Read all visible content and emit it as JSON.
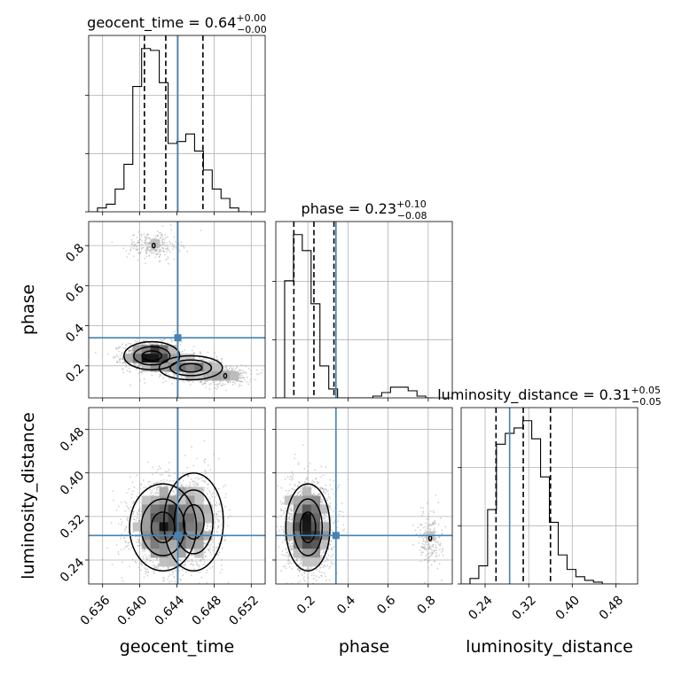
{
  "figure": {
    "truth_color": "#4682b4",
    "hist_color": "#000000",
    "point_color": "#9a9a9a",
    "contour_color": "#000000"
  },
  "chart_data": {
    "type": "corner",
    "grid": true,
    "parameters": [
      {
        "name": "geocent_time",
        "range": [
          0.6345,
          0.6535
        ],
        "ticks": [
          0.636,
          0.64,
          0.644,
          0.648,
          0.652
        ],
        "tick_labels": [
          "0.636",
          "0.640",
          "0.644",
          "0.648",
          "0.652"
        ],
        "truth": 0.6441,
        "quantiles": [
          0.6405,
          0.6428,
          0.6468
        ],
        "title": {
          "main": "geocent_time = 0.64",
          "sup": "+0.00",
          "sub": "−0.00"
        }
      },
      {
        "name": "phase",
        "range": [
          0.04,
          0.92
        ],
        "ticks": [
          0.2,
          0.4,
          0.6,
          0.8
        ],
        "tick_labels": [
          "0.2",
          "0.4",
          "0.6",
          "0.8"
        ],
        "truth": 0.34,
        "quantiles": [
          0.13,
          0.23,
          0.33
        ],
        "title": {
          "main": "phase = 0.23",
          "sup": "+0.10",
          "sub": "−0.08"
        }
      },
      {
        "name": "luminosity_distance",
        "range": [
          0.196,
          0.52
        ],
        "ticks": [
          0.24,
          0.32,
          0.4,
          0.48
        ],
        "tick_labels": [
          "0.24",
          "0.32",
          "0.40",
          "0.48"
        ],
        "truth": 0.285,
        "quantiles": [
          0.26,
          0.31,
          0.36
        ],
        "title": {
          "main": "luminosity_distance = 0.31",
          "sup": "+0.05",
          "sub": "−0.05"
        }
      }
    ],
    "histograms": [
      {
        "parameter": "geocent_time",
        "x0": 0.6345,
        "bin_width": 0.00095,
        "counts": [
          0,
          2,
          4,
          12,
          25,
          66,
          86,
          85,
          68,
          36,
          37,
          41,
          32,
          22,
          12,
          7,
          2,
          0
        ]
      },
      {
        "parameter": "phase",
        "x0": 0.04,
        "bin_width": 0.044,
        "counts": [
          0,
          66,
          92,
          83,
          53,
          18,
          5,
          0,
          0,
          0,
          0,
          1,
          3,
          6,
          6,
          4,
          1,
          0
        ]
      },
      {
        "parameter": "luminosity_distance",
        "x0": 0.196,
        "bin_width": 0.0162,
        "counts": [
          0,
          3,
          10,
          41,
          77,
          83,
          86,
          90,
          80,
          59,
          34,
          16,
          8,
          4,
          2,
          1,
          0,
          0
        ]
      }
    ],
    "joint": [
      {
        "x": "geocent_time",
        "y": "phase",
        "clusters": [
          {
            "center": [
              0.6413,
              0.25
            ],
            "spread": [
              0.0015,
              0.035
            ],
            "weight": 0.5
          },
          {
            "center": [
              0.6455,
              0.19
            ],
            "spread": [
              0.0017,
              0.03
            ],
            "weight": 0.28
          },
          {
            "center": [
              0.6492,
              0.15
            ],
            "spread": [
              0.0014,
              0.025
            ],
            "weight": 0.12
          },
          {
            "center": [
              0.6415,
              0.8
            ],
            "spread": [
              0.0014,
              0.035
            ],
            "weight": 0.1
          }
        ]
      },
      {
        "x": "geocent_time",
        "y": "luminosity_distance",
        "clusters": [
          {
            "center": [
              0.6425,
              0.3
            ],
            "spread": [
              0.0018,
              0.04
            ],
            "weight": 0.65
          },
          {
            "center": [
              0.6458,
              0.31
            ],
            "spread": [
              0.0016,
              0.045
            ],
            "weight": 0.35
          }
        ]
      },
      {
        "x": "phase",
        "y": "luminosity_distance",
        "clusters": [
          {
            "center": [
              0.2,
              0.3
            ],
            "spread": [
              0.055,
              0.04
            ],
            "weight": 0.92
          },
          {
            "center": [
              0.81,
              0.28
            ],
            "spread": [
              0.03,
              0.025
            ],
            "weight": 0.08
          }
        ]
      }
    ]
  }
}
